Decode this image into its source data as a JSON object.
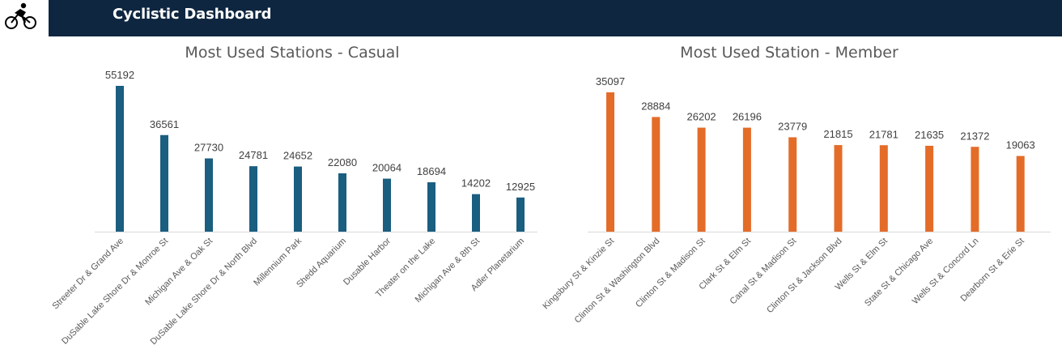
{
  "header": {
    "title": "Cyclistic Dashboard",
    "logo_icon": "cyclist-icon"
  },
  "colors": {
    "header_bg": "#0f2640",
    "casual": "#1a5e80",
    "member": "#e46c29"
  },
  "chart_data": [
    {
      "type": "bar",
      "title": "Most Used Stations - Casual",
      "categories": [
        "Streeter Dr & Grand Ave",
        "DuSable Lake Shore Dr & Monroe St",
        "Michigan Ave & Oak St",
        "DuSable Lake Shore Dr & North Blvd",
        "Millennium Park",
        "Shedd Aquarium",
        "Dusable Harbor",
        "Theater on the Lake",
        "Michigan Ave & 8th St",
        "Adler Planetarium"
      ],
      "values": [
        55192,
        36561,
        27730,
        24781,
        24652,
        22080,
        20064,
        18694,
        14202,
        12925
      ],
      "color": "#1a5e80",
      "ylim": [
        0,
        60000
      ],
      "grid": false,
      "data_labels": true
    },
    {
      "type": "bar",
      "title": "Most Used Station - Member",
      "categories": [
        "Kingsbury St & Kinzie St",
        "Clinton St & Washington Blvd",
        "Clinton St & Madison St",
        "Clark St & Elm St",
        "Canal St & Madison St",
        "Clinton St & Jackson Blvd",
        "Wells St & Elm St",
        "State St & Chicago Ave",
        "Wells St & Concord Ln",
        "Dearborn St & Erie St"
      ],
      "values": [
        35097,
        28884,
        26202,
        26196,
        23779,
        21815,
        21781,
        21635,
        21372,
        19063
      ],
      "color": "#e46c29",
      "ylim": [
        0,
        40000
      ],
      "grid": false,
      "data_labels": true
    }
  ]
}
